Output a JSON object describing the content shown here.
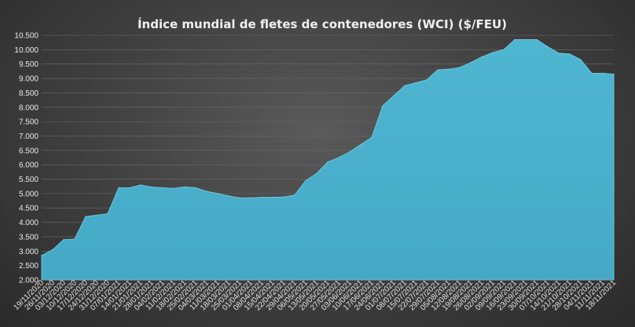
{
  "chart_data": {
    "type": "area",
    "title": "Índice mundial de fletes de contenedores (WCI) ($/FEU)",
    "xlabel": "",
    "ylabel": "",
    "ylim": [
      2000,
      10500
    ],
    "y_ticks": [
      "2.000",
      "2.500",
      "3.000",
      "3.500",
      "4.000",
      "4.500",
      "5.000",
      "5.500",
      "6.000",
      "6.500",
      "7.000",
      "7.500",
      "8.000",
      "8.500",
      "9.000",
      "9.500",
      "10.000",
      "10.500"
    ],
    "y_tick_values": [
      2000,
      2500,
      3000,
      3500,
      4000,
      4500,
      5000,
      5500,
      6000,
      6500,
      7000,
      7500,
      8000,
      8500,
      9000,
      9500,
      10000,
      10500
    ],
    "grid": true,
    "legend": "none",
    "colors": {
      "fill": "#4fb6d2",
      "stroke": "#6cc7de"
    },
    "categories": [
      "19/11/2020",
      "26/11/2020",
      "03/12/2020",
      "10/12/2020",
      "17/12/2020",
      "24/12/2020",
      "31/12/2020",
      "07/01/2021",
      "14/01/2021",
      "21/01/2021",
      "28/01/2021",
      "04/02/2021",
      "11/02/2021",
      "18/02/2021",
      "25/02/2021",
      "04/03/2021",
      "11/03/2021",
      "18/03/2021",
      "25/03/2021",
      "01/04/2021",
      "08/04/2021",
      "15/04/2021",
      "22/04/2021",
      "29/04/2021",
      "06/05/2021",
      "13/05/2021",
      "20/05/2021",
      "27/05/2021",
      "03/06/2021",
      "10/06/2021",
      "17/06/2021",
      "24/06/2021",
      "01/07/2021",
      "08/07/2021",
      "15/07/2021",
      "22/07/2021",
      "29/07/2021",
      "05/08/2021",
      "12/08/2021",
      "19/08/2021",
      "26/08/2021",
      "02/09/2021",
      "09/09/2021",
      "16/09/2021",
      "23/09/2021",
      "30/09/2021",
      "07/10/2021",
      "14/10/2021",
      "21/10/2021",
      "28/10/2021",
      "04/11/2021",
      "11/11/2021",
      "18/11/2021"
    ],
    "values": [
      2850,
      3050,
      3400,
      3420,
      4200,
      4250,
      4300,
      5200,
      5200,
      5300,
      5230,
      5200,
      5180,
      5230,
      5200,
      5080,
      5000,
      4920,
      4850,
      4850,
      4870,
      4870,
      4880,
      4950,
      5450,
      5700,
      6100,
      6250,
      6450,
      6700,
      6950,
      8050,
      8400,
      8750,
      8850,
      8950,
      9300,
      9320,
      9380,
      9550,
      9750,
      9900,
      10000,
      10350,
      10350,
      10350,
      10100,
      9880,
      9850,
      9650,
      9180,
      9180,
      9150
    ]
  }
}
